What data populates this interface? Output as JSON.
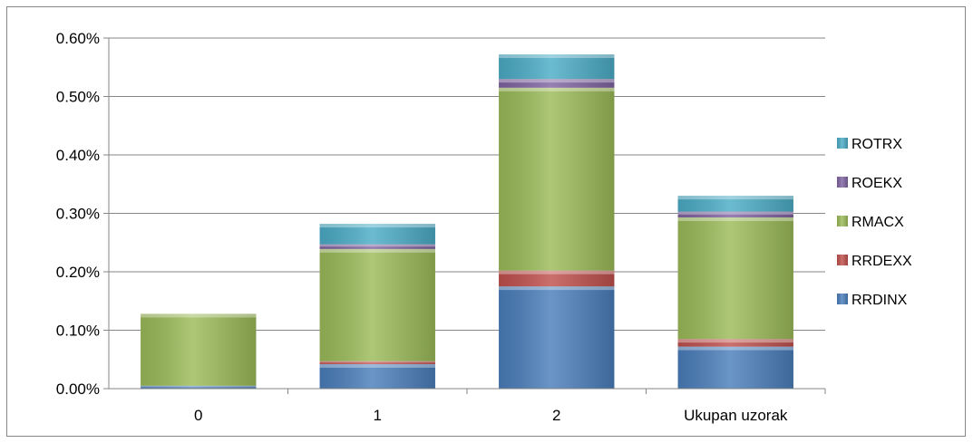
{
  "chart_data": {
    "type": "bar",
    "stacked": true,
    "categories": [
      "0",
      "1",
      "2",
      "Ukupan uzorak"
    ],
    "series": [
      {
        "name": "RRDINX",
        "color": "#4a7ebb",
        "values": [
          5e-05,
          0.00042,
          0.00175,
          0.00072
        ]
      },
      {
        "name": "RRDEXX",
        "color": "#c0504d",
        "values": [
          0.0,
          5e-05,
          0.00027,
          0.00013
        ]
      },
      {
        "name": "RMACX",
        "color": "#9bbb59",
        "values": [
          0.00123,
          0.00192,
          0.00313,
          0.00208
        ]
      },
      {
        "name": "ROEKX",
        "color": "#8064a2",
        "values": [
          0.0,
          8e-05,
          0.00015,
          0.0001
        ]
      },
      {
        "name": "ROTRX",
        "color": "#4bacc6",
        "values": [
          0.0,
          0.00035,
          0.00042,
          0.00027
        ]
      }
    ],
    "y_ticks": [
      "0.00%",
      "0.10%",
      "0.20%",
      "0.30%",
      "0.40%",
      "0.50%",
      "0.60%"
    ],
    "ylim": [
      0,
      0.006
    ],
    "grid": true,
    "legend_position": "right",
    "title": "",
    "xlabel": "",
    "ylabel": ""
  }
}
